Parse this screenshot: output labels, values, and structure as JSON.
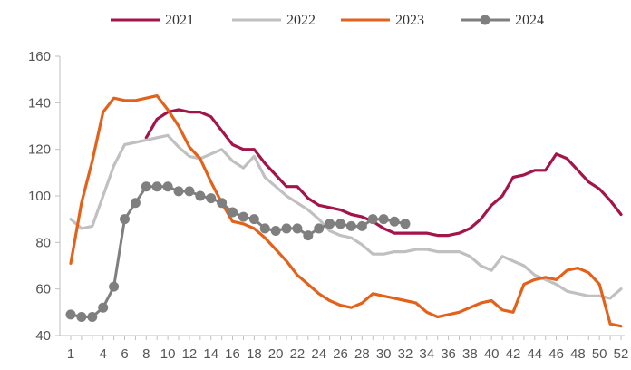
{
  "chart_data": {
    "type": "line",
    "title": "",
    "xlabel": "",
    "ylabel": "",
    "ylim": [
      40,
      160
    ],
    "yticks": [
      40,
      60,
      80,
      100,
      120,
      140,
      160
    ],
    "x": [
      1,
      2,
      3,
      4,
      5,
      6,
      7,
      8,
      9,
      10,
      11,
      12,
      13,
      14,
      15,
      16,
      17,
      18,
      19,
      20,
      21,
      22,
      23,
      24,
      25,
      26,
      27,
      28,
      29,
      30,
      31,
      32,
      33,
      34,
      35,
      36,
      37,
      38,
      39,
      40,
      41,
      42,
      43,
      44,
      45,
      46,
      47,
      48,
      49,
      50,
      51,
      52
    ],
    "x_tick_labels": [
      "1",
      "4",
      "6",
      "8",
      "10",
      "12",
      "14",
      "16",
      "18",
      "20",
      "22",
      "24",
      "26",
      "28",
      "30",
      "32",
      "34",
      "36",
      "38",
      "40",
      "42",
      "44",
      "46",
      "48",
      "50",
      "52"
    ],
    "x_tick_weeks": [
      1,
      4,
      6,
      8,
      10,
      12,
      14,
      16,
      18,
      20,
      22,
      24,
      26,
      28,
      30,
      32,
      34,
      36,
      38,
      40,
      42,
      44,
      46,
      48,
      50,
      52
    ],
    "grid": false,
    "legend_position": "top",
    "series": [
      {
        "name": "2021",
        "color": "#a3154a",
        "marker": false,
        "x": [
          8,
          9,
          10,
          11,
          12,
          13,
          14,
          15,
          16,
          17,
          18,
          19,
          20,
          21,
          22,
          23,
          24,
          25,
          26,
          27,
          28,
          29,
          30,
          31,
          32,
          33,
          34,
          35,
          36,
          37,
          38,
          39,
          40,
          41,
          42,
          43,
          44,
          45,
          46,
          47,
          48,
          49,
          50,
          51,
          52
        ],
        "values": [
          125,
          133,
          136,
          137,
          136,
          136,
          134,
          128,
          122,
          120,
          120,
          114,
          109,
          104,
          104,
          99,
          96,
          95,
          94,
          92,
          91,
          89,
          86,
          84,
          84,
          84,
          84,
          83,
          83,
          84,
          86,
          90,
          96,
          100,
          108,
          109,
          111,
          111,
          118,
          116,
          111,
          106,
          103,
          98,
          92
        ]
      },
      {
        "name": "2022",
        "color": "#c0c0c0",
        "marker": false,
        "x": [
          1,
          2,
          3,
          4,
          5,
          6,
          7,
          8,
          9,
          10,
          11,
          12,
          13,
          14,
          15,
          16,
          17,
          18,
          19,
          20,
          21,
          22,
          23,
          24,
          25,
          26,
          27,
          28,
          29,
          30,
          31,
          32,
          33,
          34,
          35,
          36,
          37,
          38,
          39,
          40,
          41,
          42,
          43,
          44,
          45,
          46,
          47,
          48,
          49,
          50,
          51,
          52
        ],
        "values": [
          90,
          86,
          87,
          100,
          113,
          122,
          123,
          124,
          125,
          126,
          121,
          117,
          116,
          118,
          120,
          115,
          112,
          117,
          108,
          104,
          100,
          97,
          94,
          90,
          85,
          83,
          82,
          79,
          75,
          75,
          76,
          76,
          77,
          77,
          76,
          76,
          76,
          74,
          70,
          68,
          74,
          72,
          70,
          66,
          64,
          62,
          59,
          58,
          57,
          57,
          56,
          60
        ]
      },
      {
        "name": "2023",
        "color": "#e3621b",
        "marker": false,
        "x": [
          1,
          2,
          3,
          4,
          5,
          6,
          7,
          8,
          9,
          10,
          11,
          12,
          13,
          14,
          15,
          16,
          17,
          18,
          19,
          20,
          21,
          22,
          23,
          24,
          25,
          26,
          27,
          28,
          29,
          30,
          31,
          32,
          33,
          34,
          35,
          36,
          37,
          38,
          39,
          40,
          41,
          42,
          43,
          44,
          45,
          46,
          47,
          48,
          49,
          50,
          51,
          52
        ],
        "values": [
          71,
          97,
          115,
          136,
          142,
          141,
          141,
          142,
          143,
          137,
          130,
          121,
          116,
          106,
          97,
          89,
          88,
          86,
          82,
          77,
          72,
          66,
          62,
          58,
          55,
          53,
          52,
          54,
          58,
          57,
          56,
          55,
          54,
          50,
          48,
          49,
          50,
          52,
          54,
          55,
          51,
          50,
          62,
          64,
          65,
          64,
          68,
          69,
          67,
          62,
          45,
          44
        ]
      },
      {
        "name": "2024",
        "color": "#7f7f7f",
        "marker": true,
        "x": [
          1,
          2,
          3,
          4,
          5,
          6,
          7,
          8,
          9,
          10,
          11,
          12,
          13,
          14,
          15,
          16,
          17,
          18,
          19,
          20,
          21,
          22,
          23,
          24,
          25,
          26,
          27,
          28,
          29,
          30,
          31,
          32
        ],
        "values": [
          49,
          48,
          48,
          52,
          61,
          90,
          97,
          104,
          104,
          104,
          102,
          102,
          100,
          99,
          97,
          93,
          91,
          90,
          86,
          85,
          86,
          86,
          83,
          86,
          88,
          88,
          87,
          87,
          90,
          90,
          89,
          88
        ]
      }
    ]
  }
}
